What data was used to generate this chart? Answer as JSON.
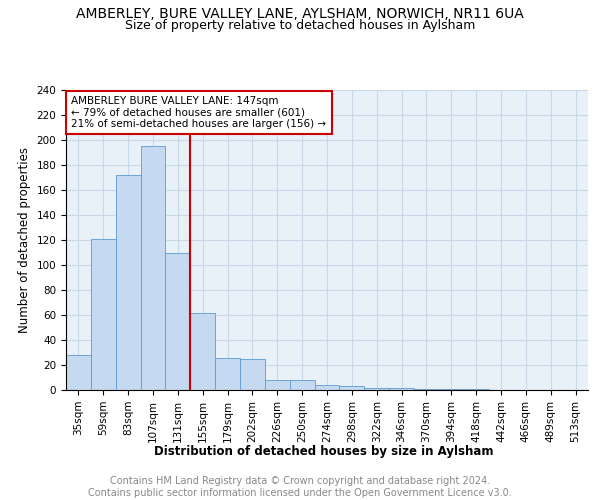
{
  "title": "AMBERLEY, BURE VALLEY LANE, AYLSHAM, NORWICH, NR11 6UA",
  "subtitle": "Size of property relative to detached houses in Aylsham",
  "xlabel": "Distribution of detached houses by size in Aylsham",
  "ylabel": "Number of detached properties",
  "categories": [
    "35sqm",
    "59sqm",
    "83sqm",
    "107sqm",
    "131sqm",
    "155sqm",
    "179sqm",
    "202sqm",
    "226sqm",
    "250sqm",
    "274sqm",
    "298sqm",
    "322sqm",
    "346sqm",
    "370sqm",
    "394sqm",
    "418sqm",
    "442sqm",
    "466sqm",
    "489sqm",
    "513sqm"
  ],
  "values": [
    28,
    121,
    172,
    195,
    110,
    62,
    26,
    25,
    8,
    8,
    4,
    3,
    2,
    2,
    1,
    1,
    1,
    0,
    0,
    0,
    0
  ],
  "bar_color": "#c5d9f1",
  "bar_edge_color": "#5b9bd5",
  "grid_color": "#c8d8e8",
  "vline_x": 4.5,
  "vline_color": "#cc0000",
  "annotation_text": "AMBERLEY BURE VALLEY LANE: 147sqm\n← 79% of detached houses are smaller (601)\n21% of semi-detached houses are larger (156) →",
  "annotation_box_color": "#ffffff",
  "annotation_box_edge_color": "#cc0000",
  "footer_text": "Contains HM Land Registry data © Crown copyright and database right 2024.\nContains public sector information licensed under the Open Government Licence v3.0.",
  "ylim": [
    0,
    240
  ],
  "yticks": [
    0,
    20,
    40,
    60,
    80,
    100,
    120,
    140,
    160,
    180,
    200,
    220,
    240
  ],
  "title_fontsize": 10,
  "subtitle_fontsize": 9,
  "xlabel_fontsize": 8.5,
  "ylabel_fontsize": 8.5,
  "tick_fontsize": 7.5,
  "annotation_fontsize": 7.5,
  "footer_fontsize": 7
}
